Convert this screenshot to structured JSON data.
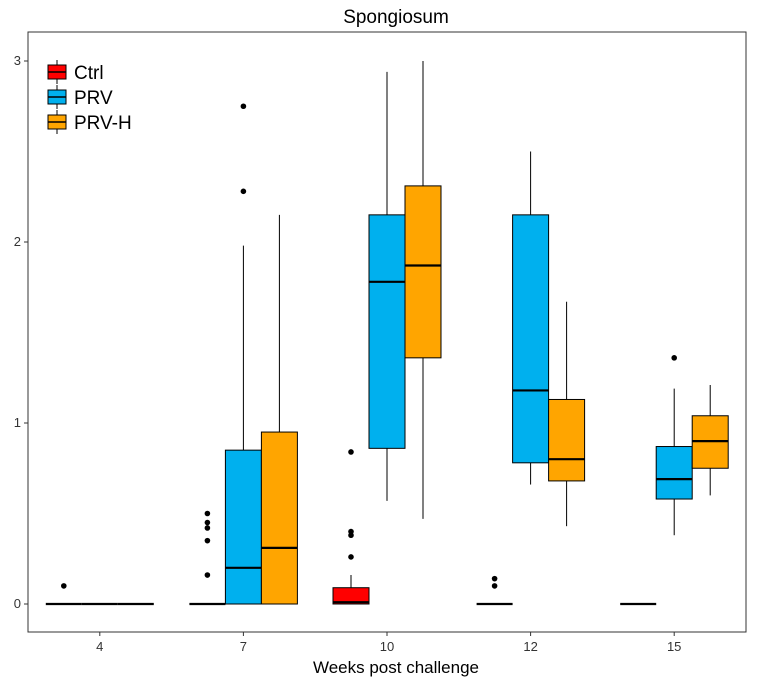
{
  "chart_data": {
    "type": "box",
    "title": "Spongiosum",
    "xlabel": "Weeks post challenge",
    "ylabel": "",
    "categories": [
      "4",
      "7",
      "10",
      "12",
      "15"
    ],
    "ylim": [
      -0.15,
      3.1
    ],
    "yticks": [
      0,
      1,
      2,
      3
    ],
    "grid": false,
    "legend_position": "top-left",
    "series": [
      {
        "name": "Ctrl",
        "color": "#ff0000",
        "boxes": [
          {
            "category": "4",
            "q1": 0,
            "median": 0,
            "q3": 0,
            "whisker_low": 0,
            "whisker_high": 0,
            "outliers": [
              0.1
            ]
          },
          {
            "category": "7",
            "q1": 0,
            "median": 0,
            "q3": 0,
            "whisker_low": 0,
            "whisker_high": 0,
            "outliers": [
              0.16,
              0.35,
              0.42,
              0.45,
              0.5
            ]
          },
          {
            "category": "10",
            "q1": 0,
            "median": 0.01,
            "q3": 0.09,
            "whisker_low": 0,
            "whisker_high": 0.16,
            "outliers": [
              0.26,
              0.38,
              0.4,
              0.84
            ]
          },
          {
            "category": "12",
            "q1": 0,
            "median": 0,
            "q3": 0,
            "whisker_low": 0,
            "whisker_high": 0,
            "outliers": [
              0.1,
              0.14
            ]
          },
          {
            "category": "15",
            "q1": 0,
            "median": 0,
            "q3": 0,
            "whisker_low": 0,
            "whisker_high": 0,
            "outliers": []
          }
        ]
      },
      {
        "name": "PRV",
        "color": "#00b0ee",
        "boxes": [
          {
            "category": "4",
            "q1": 0,
            "median": 0,
            "q3": 0,
            "whisker_low": 0,
            "whisker_high": 0,
            "outliers": []
          },
          {
            "category": "7",
            "q1": 0,
            "median": 0.2,
            "q3": 0.85,
            "whisker_low": 0,
            "whisker_high": 1.98,
            "outliers": [
              2.28,
              2.75
            ]
          },
          {
            "category": "10",
            "q1": 0.86,
            "median": 1.78,
            "q3": 2.15,
            "whisker_low": 0.57,
            "whisker_high": 2.94,
            "outliers": []
          },
          {
            "category": "12",
            "q1": 0.78,
            "median": 1.18,
            "q3": 2.15,
            "whisker_low": 0.66,
            "whisker_high": 2.5,
            "outliers": []
          },
          {
            "category": "15",
            "q1": 0.58,
            "median": 0.69,
            "q3": 0.87,
            "whisker_low": 0.38,
            "whisker_high": 1.19,
            "outliers": [
              1.36
            ]
          }
        ]
      },
      {
        "name": "PRV-H",
        "color": "#ffa500",
        "boxes": [
          {
            "category": "4",
            "q1": 0,
            "median": 0,
            "q3": 0,
            "whisker_low": 0,
            "whisker_high": 0,
            "outliers": []
          },
          {
            "category": "7",
            "q1": 0,
            "median": 0.31,
            "q3": 0.95,
            "whisker_low": 0,
            "whisker_high": 2.15,
            "outliers": []
          },
          {
            "category": "10",
            "q1": 1.36,
            "median": 1.87,
            "q3": 2.31,
            "whisker_low": 0.47,
            "whisker_high": 3.0,
            "outliers": []
          },
          {
            "category": "12",
            "q1": 0.68,
            "median": 0.8,
            "q3": 1.13,
            "whisker_low": 0.43,
            "whisker_high": 1.67,
            "outliers": []
          },
          {
            "category": "15",
            "q1": 0.75,
            "median": 0.9,
            "q3": 1.04,
            "whisker_low": 0.6,
            "whisker_high": 1.21,
            "outliers": []
          }
        ]
      }
    ]
  }
}
